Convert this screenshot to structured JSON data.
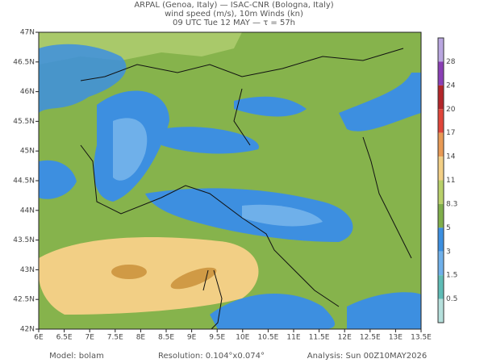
{
  "header": {
    "line1": "ARPAL (Genoa, Italy)  —  ISAC-CNR (Bologna, Italy)",
    "line2": "wind speed (m/s), 10m Winds (kn)",
    "line3": "09 UTC Tue 12 MAY  —  τ = 57h"
  },
  "axes": {
    "lon": [
      "6E",
      "6.5E",
      "7E",
      "7.5E",
      "8E",
      "8.5E",
      "9E",
      "9.5E",
      "10E",
      "10.5E",
      "11E",
      "11.5E",
      "12E",
      "12.5E",
      "13E",
      "13.5E"
    ],
    "lat": [
      "47N",
      "46.5N",
      "46N",
      "45.5N",
      "45N",
      "44.5N",
      "44N",
      "43.5N",
      "43N",
      "42.5N",
      "42N"
    ]
  },
  "colorbar": {
    "colors": [
      "#b9a6e0",
      "#8a3fb5",
      "#b3262a",
      "#e0453a",
      "#e89a55",
      "#f2cf85",
      "#b8d06a",
      "#7fae4a",
      "#3c8fe0",
      "#6fb0ea",
      "#5fbcb6",
      "#b5e0dc"
    ],
    "labels": [
      "28",
      "24",
      "20",
      "17",
      "14",
      "11",
      "8.3",
      "5",
      "3",
      "1.5",
      "0.5"
    ]
  },
  "footer": {
    "model": "Model: bolam",
    "resolution": "Resolution: 0.104°x0.074°",
    "analysis": "Analysis: Sun 00Z10MAY2026"
  }
}
